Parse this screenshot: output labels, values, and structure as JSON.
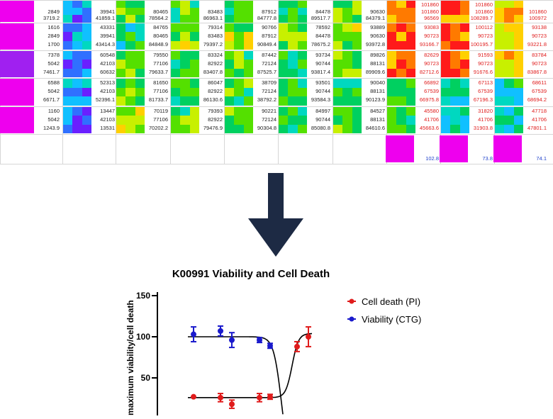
{
  "grid": {
    "columns": 10,
    "rows": [
      {
        "col0": [
          "",
          "2849",
          "3719.2"
        ],
        "col1": [
          "",
          "39941",
          "41859.1"
        ],
        "col2": [
          "",
          "80465",
          "78564.2"
        ],
        "col3": [
          "",
          "83483",
          "86963.1"
        ],
        "col4": [
          "",
          "87912",
          "84777.8"
        ],
        "col5": [
          "",
          "84478",
          "89517.7"
        ],
        "col6": [
          "",
          "90630",
          "84379.1"
        ],
        "col7": [
          "101860",
          "101860",
          "96569"
        ],
        "col8": [
          "101860",
          "101860",
          "108289.7"
        ],
        "col9": [
          "",
          "101860",
          "100972"
        ],
        "red_cols": [
          7,
          8,
          9
        ]
      },
      {
        "col0": [
          "1616",
          "2849",
          "1700"
        ],
        "col1": [
          "43331",
          "39941",
          "43414.3"
        ],
        "col2": [
          "84765",
          "80465",
          "84848.9"
        ],
        "col3": [
          "79314",
          "83483",
          "79397.2"
        ],
        "col4": [
          "90766",
          "87912",
          "90849.4"
        ],
        "col5": [
          "78592",
          "84478",
          "78675.2"
        ],
        "col6": [
          "93889",
          "90630",
          "93972.8"
        ],
        "col7": [
          "93083",
          "90723",
          "93166.7"
        ],
        "col8": [
          "100112",
          "90723",
          "100195.7"
        ],
        "col9": [
          "93138",
          "90723",
          "93221.8"
        ],
        "red_cols": [
          7,
          8,
          9
        ]
      },
      {
        "col0": [
          "7378",
          "5042",
          "7461.7"
        ],
        "col1": [
          "60548",
          "42103",
          "60632"
        ],
        "col2": [
          "79550",
          "77106",
          "79633.7"
        ],
        "col3": [
          "83324",
          "82922",
          "83407.8"
        ],
        "col4": [
          "87442",
          "72124",
          "87525.7"
        ],
        "col5": [
          "93734",
          "90744",
          "93817.4"
        ],
        "col6": [
          "89826",
          "88131",
          "89909.6"
        ],
        "col7": [
          "82629",
          "90723",
          "82712.6"
        ],
        "col8": [
          "91593",
          "90723",
          "91676.6"
        ],
        "col9": [
          "83784",
          "90723",
          "83867.8"
        ],
        "red_cols": [
          7,
          8,
          9
        ]
      },
      {
        "col0": [
          "6588",
          "5042",
          "6671.7"
        ],
        "col1": [
          "52313",
          "42103",
          "52396.1"
        ],
        "col2": [
          "81650",
          "77106",
          "81733.7"
        ],
        "col3": [
          "86047",
          "82922",
          "86130.6"
        ],
        "col4": [
          "38709",
          "72124",
          "38792.2"
        ],
        "col5": [
          "93501",
          "90744",
          "93584.3"
        ],
        "col6": [
          "90040",
          "88131",
          "90123.9"
        ],
        "col7": [
          "66892",
          "67539",
          "66975.8"
        ],
        "col8": [
          "67113",
          "67539",
          "67196.3"
        ],
        "col9": [
          "68611",
          "67539",
          "68694.2"
        ],
        "red_cols": [
          7,
          8,
          9
        ]
      },
      {
        "col0": [
          "1160",
          "5042",
          "1243.9"
        ],
        "col1": [
          "13447",
          "42103",
          "13531"
        ],
        "col2": [
          "70119",
          "77106",
          "70202.2"
        ],
        "col3": [
          "79393",
          "82922",
          "79476.9"
        ],
        "col4": [
          "90221",
          "72124",
          "90304.8"
        ],
        "col5": [
          "84997",
          "90744",
          "85080.8"
        ],
        "col6": [
          "84527",
          "88131",
          "84610.6"
        ],
        "col7": [
          "45580",
          "41706",
          "45663.6"
        ],
        "col8": [
          "31820",
          "41706",
          "31903.8"
        ],
        "col9": [
          "47718",
          "41706",
          "47801.1"
        ],
        "red_cols": [
          7,
          8,
          9
        ]
      }
    ],
    "summary": [
      "102.8",
      "73.8",
      "74.1"
    ],
    "accent_magenta": "#ee00ee",
    "accent_purple": "#a020f0",
    "value_red": "#e01b1b",
    "value_blue": "#2244cc"
  },
  "arrow": {
    "icon": "down-arrow-icon",
    "color": "#1d2a44"
  },
  "chart_data": {
    "type": "scatter",
    "title": "K00991 Viability and Cell Death",
    "ylabel": "maximum viability/cell death",
    "yticks": [
      "150",
      "100",
      "50"
    ],
    "ylim": [
      0,
      150
    ],
    "x": [
      1,
      2,
      3,
      4,
      5,
      6,
      7
    ],
    "series": [
      {
        "name": "Cell death (PI)",
        "color": "#e01b1b",
        "values": [
          27,
          26,
          18,
          26,
          27,
          88,
          100
        ],
        "errors": [
          0,
          5,
          5,
          5,
          3,
          6,
          12
        ]
      },
      {
        "name": "Viability  (CTG)",
        "color": "#1a1acc",
        "values": [
          103,
          107,
          96,
          96,
          89,
          null,
          null
        ],
        "errors": [
          9,
          6,
          9,
          3,
          3,
          0,
          0
        ]
      }
    ],
    "legend_position": "top-right",
    "grid": false
  }
}
